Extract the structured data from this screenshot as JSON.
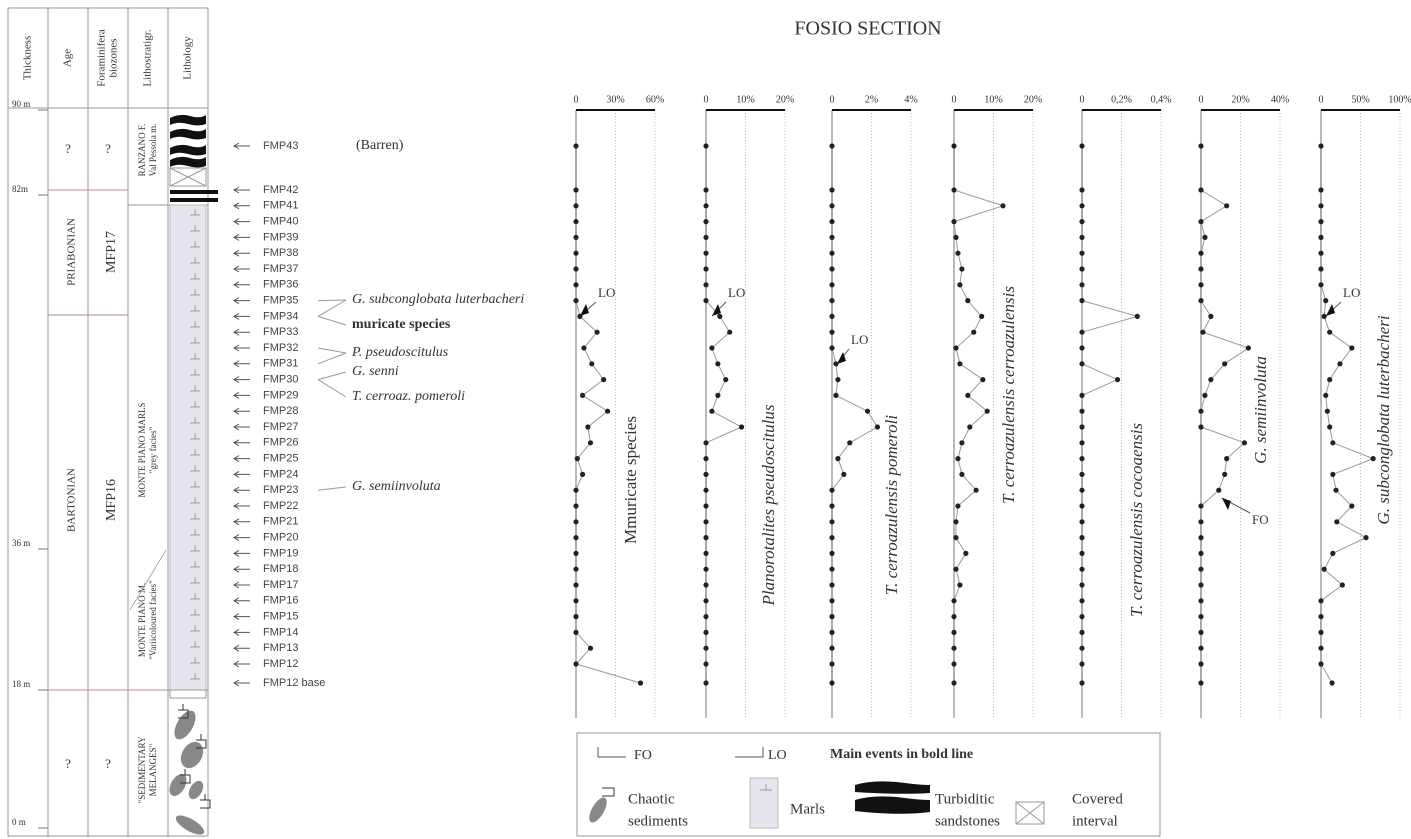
{
  "title": "FOSIO SECTION",
  "stratigraphy": {
    "columns": [
      [
        "Thickness"
      ],
      [
        "Age"
      ],
      [
        "Foraminifera",
        "biozones"
      ],
      [
        "Lithostratigr."
      ],
      [
        "Lithology"
      ]
    ],
    "thickness": {
      "ylim": [
        0,
        90
      ],
      "yticks": [
        {
          "value": 0,
          "label": "0 m"
        },
        {
          "value": 18,
          "label": "18 m"
        },
        {
          "value": 36,
          "label": "36 m"
        },
        {
          "value": 82,
          "label": "82m"
        },
        {
          "value": 90,
          "label": "90 m"
        }
      ]
    },
    "age": [
      "?",
      "PRIABONIAN",
      "BARTONIAN",
      "?"
    ],
    "biozones": [
      "?",
      "MFP17",
      "MFP16",
      "?"
    ],
    "lithostratigraphy": [
      [
        "RANZANO F.",
        "Val Pessola m."
      ],
      [
        "MONTE PIANO MARLS",
        "\"grey facies\""
      ],
      [
        "MONTE PIANO M.",
        "\"Variicoloured facies\""
      ],
      [
        "\"SEDIMENTARY",
        "MELANGES\""
      ]
    ]
  },
  "samples": [
    "FMP43",
    "FMP42",
    "FMP41",
    "FMP40",
    "FMP39",
    "FMP38",
    "FMP37",
    "FMP36",
    "FMP35",
    "FMP34",
    "FMP33",
    "FMP32",
    "FMP31",
    "FMP30",
    "FMP29",
    "FMP28",
    "FMP27",
    "FMP26",
    "FMP25",
    "FMP24",
    "FMP23",
    "FMP22",
    "FMP21",
    "FMP20",
    "FMP19",
    "FMP18",
    "FMP17",
    "FMP16",
    "FMP15",
    "FMP14",
    "FMP13",
    "FMP12",
    "FMP12 base"
  ],
  "barren": "(Barren)",
  "events": [
    "G. subconglobata luterbacheri",
    "muricate species",
    "P. pseudoscitulus",
    "G. senni",
    "T. cerroaz. pomeroli",
    "G. semiinvoluta"
  ],
  "legend": {
    "fo": "FO",
    "lo": "LO",
    "note": "Main events in bold line",
    "items": [
      [
        "Chaotic",
        "sediments"
      ],
      [
        "Marls"
      ],
      [
        "Turbiditic",
        "sandstones"
      ],
      [
        "Covered",
        "interval"
      ]
    ]
  },
  "chart_data": [
    {
      "type": "line",
      "title": "Mmuricate species",
      "xlim": [
        0,
        60
      ],
      "xticks": [
        0,
        {
          "value": 30,
          "label": "30%"
        },
        {
          "value": 60,
          "label": "60%"
        }
      ],
      "color": "#222",
      "annotations": [
        "LO"
      ],
      "values": [
        0,
        0,
        0,
        0,
        0,
        0,
        0,
        0,
        0,
        3,
        16,
        6,
        12,
        21,
        5,
        24,
        9,
        11,
        1,
        5,
        0,
        0,
        0,
        0,
        0,
        0,
        0,
        0,
        0,
        0,
        11,
        0,
        49
      ]
    },
    {
      "type": "line",
      "title": "Planorotalites pseudoscitulus",
      "xlim": [
        0,
        20
      ],
      "xticks": [
        0,
        {
          "value": 10,
          "label": "10%"
        },
        {
          "value": 20,
          "label": "20%"
        }
      ],
      "color": "#222",
      "annotations": [
        "LO"
      ],
      "values": [
        0,
        0,
        0,
        0,
        0,
        0,
        0,
        0,
        0,
        3.5,
        6,
        1.5,
        3,
        5,
        3,
        1.5,
        9,
        0,
        0,
        0,
        0,
        0,
        0,
        0,
        0,
        0,
        0,
        0,
        0,
        0,
        0,
        0,
        0
      ]
    },
    {
      "type": "line",
      "title": "T. cerroazulensis pomeroli",
      "xlim": [
        0,
        4
      ],
      "xticks": [
        0,
        {
          "value": 2,
          "label": "2%"
        },
        {
          "value": 4,
          "label": "4%"
        }
      ],
      "color": "#222",
      "annotations": [
        "LO"
      ],
      "values": [
        0,
        0,
        0,
        0,
        0,
        0,
        0,
        0,
        0,
        0,
        0,
        0,
        0.2,
        0.3,
        0.2,
        1.8,
        2.3,
        0.9,
        0.3,
        0.6,
        0,
        0,
        0,
        0,
        0,
        0,
        0,
        0,
        0,
        0,
        0,
        0,
        0
      ]
    },
    {
      "type": "line",
      "title": "T. cerroazulensis cerroazulensis",
      "xlim": [
        0,
        20
      ],
      "xticks": [
        0,
        {
          "value": 10,
          "label": "10%"
        },
        {
          "value": 20,
          "label": "20%"
        }
      ],
      "color": "#222",
      "annotations": [],
      "values": [
        0,
        0,
        12.4,
        0,
        0.5,
        1,
        2,
        1.5,
        3.5,
        7,
        5,
        0.5,
        1.5,
        7.3,
        3.5,
        8.4,
        4,
        2,
        1,
        2,
        5.6,
        1,
        0.5,
        0.5,
        3,
        0.5,
        1.5,
        0,
        0,
        0,
        0,
        0,
        0
      ]
    },
    {
      "type": "line",
      "title": "T. cerroazulensis cocoaensis",
      "xlim": [
        0,
        0.4
      ],
      "xticks": [
        0,
        {
          "value": 0.2,
          "label": "0,2%"
        },
        {
          "value": 0.4,
          "label": "0,4%"
        }
      ],
      "color": "#222",
      "annotations": [],
      "values": [
        0,
        0,
        0,
        0,
        0,
        0,
        0,
        0,
        0,
        0.28,
        0,
        0,
        0,
        0.18,
        0,
        0,
        0,
        0,
        0,
        0,
        0,
        0,
        0,
        0,
        0,
        0,
        0,
        0,
        0,
        0,
        0,
        0,
        0
      ]
    },
    {
      "type": "line",
      "title": "G. semiinvoluta",
      "xlim": [
        0,
        40
      ],
      "xticks": [
        0,
        {
          "value": 20,
          "label": "20%"
        },
        {
          "value": 40,
          "label": "40%"
        }
      ],
      "color": "#222",
      "annotations": [
        "FO"
      ],
      "values": [
        0,
        0,
        13,
        0,
        2,
        0,
        0,
        0,
        0,
        5,
        1,
        24,
        12,
        5,
        2,
        0,
        0,
        22,
        13,
        12,
        9,
        0,
        0,
        0,
        0,
        0,
        0,
        0,
        0,
        0,
        0,
        0,
        0
      ]
    },
    {
      "type": "line",
      "title": "G. subconglobata luterbacheri",
      "xlim": [
        0,
        100
      ],
      "xticks": [
        0,
        {
          "value": 50,
          "label": "50%"
        },
        {
          "value": 100,
          "label": "100%"
        }
      ],
      "color": "#222",
      "annotations": [
        "LO"
      ],
      "values": [
        0,
        0,
        0,
        0,
        0,
        0,
        0,
        0,
        6,
        4,
        11,
        39,
        24,
        11,
        6,
        8,
        11,
        15,
        66,
        15,
        19,
        39,
        20,
        57,
        15,
        4,
        27,
        0,
        0,
        0,
        0,
        0,
        14
      ]
    }
  ]
}
